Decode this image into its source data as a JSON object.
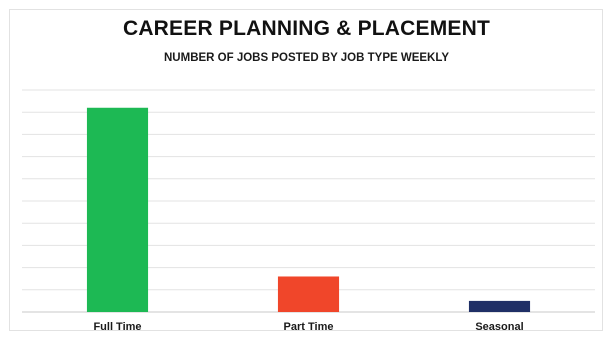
{
  "chart_data": {
    "type": "bar",
    "title": "CAREER PLANNING & PLACEMENT",
    "subtitle": "NUMBER OF JOBS POSTED BY JOB TYPE WEEKLY",
    "categories": [
      "Full Time",
      "Part Time",
      "Seasonal"
    ],
    "values": [
      92,
      16,
      5
    ],
    "colors": [
      "#1db954",
      "#f0462a",
      "#1f2f66"
    ],
    "ylim": [
      0,
      100
    ],
    "grid": true,
    "gridline_count": 10,
    "legend": "none",
    "xlabel": "",
    "ylabel": ""
  }
}
